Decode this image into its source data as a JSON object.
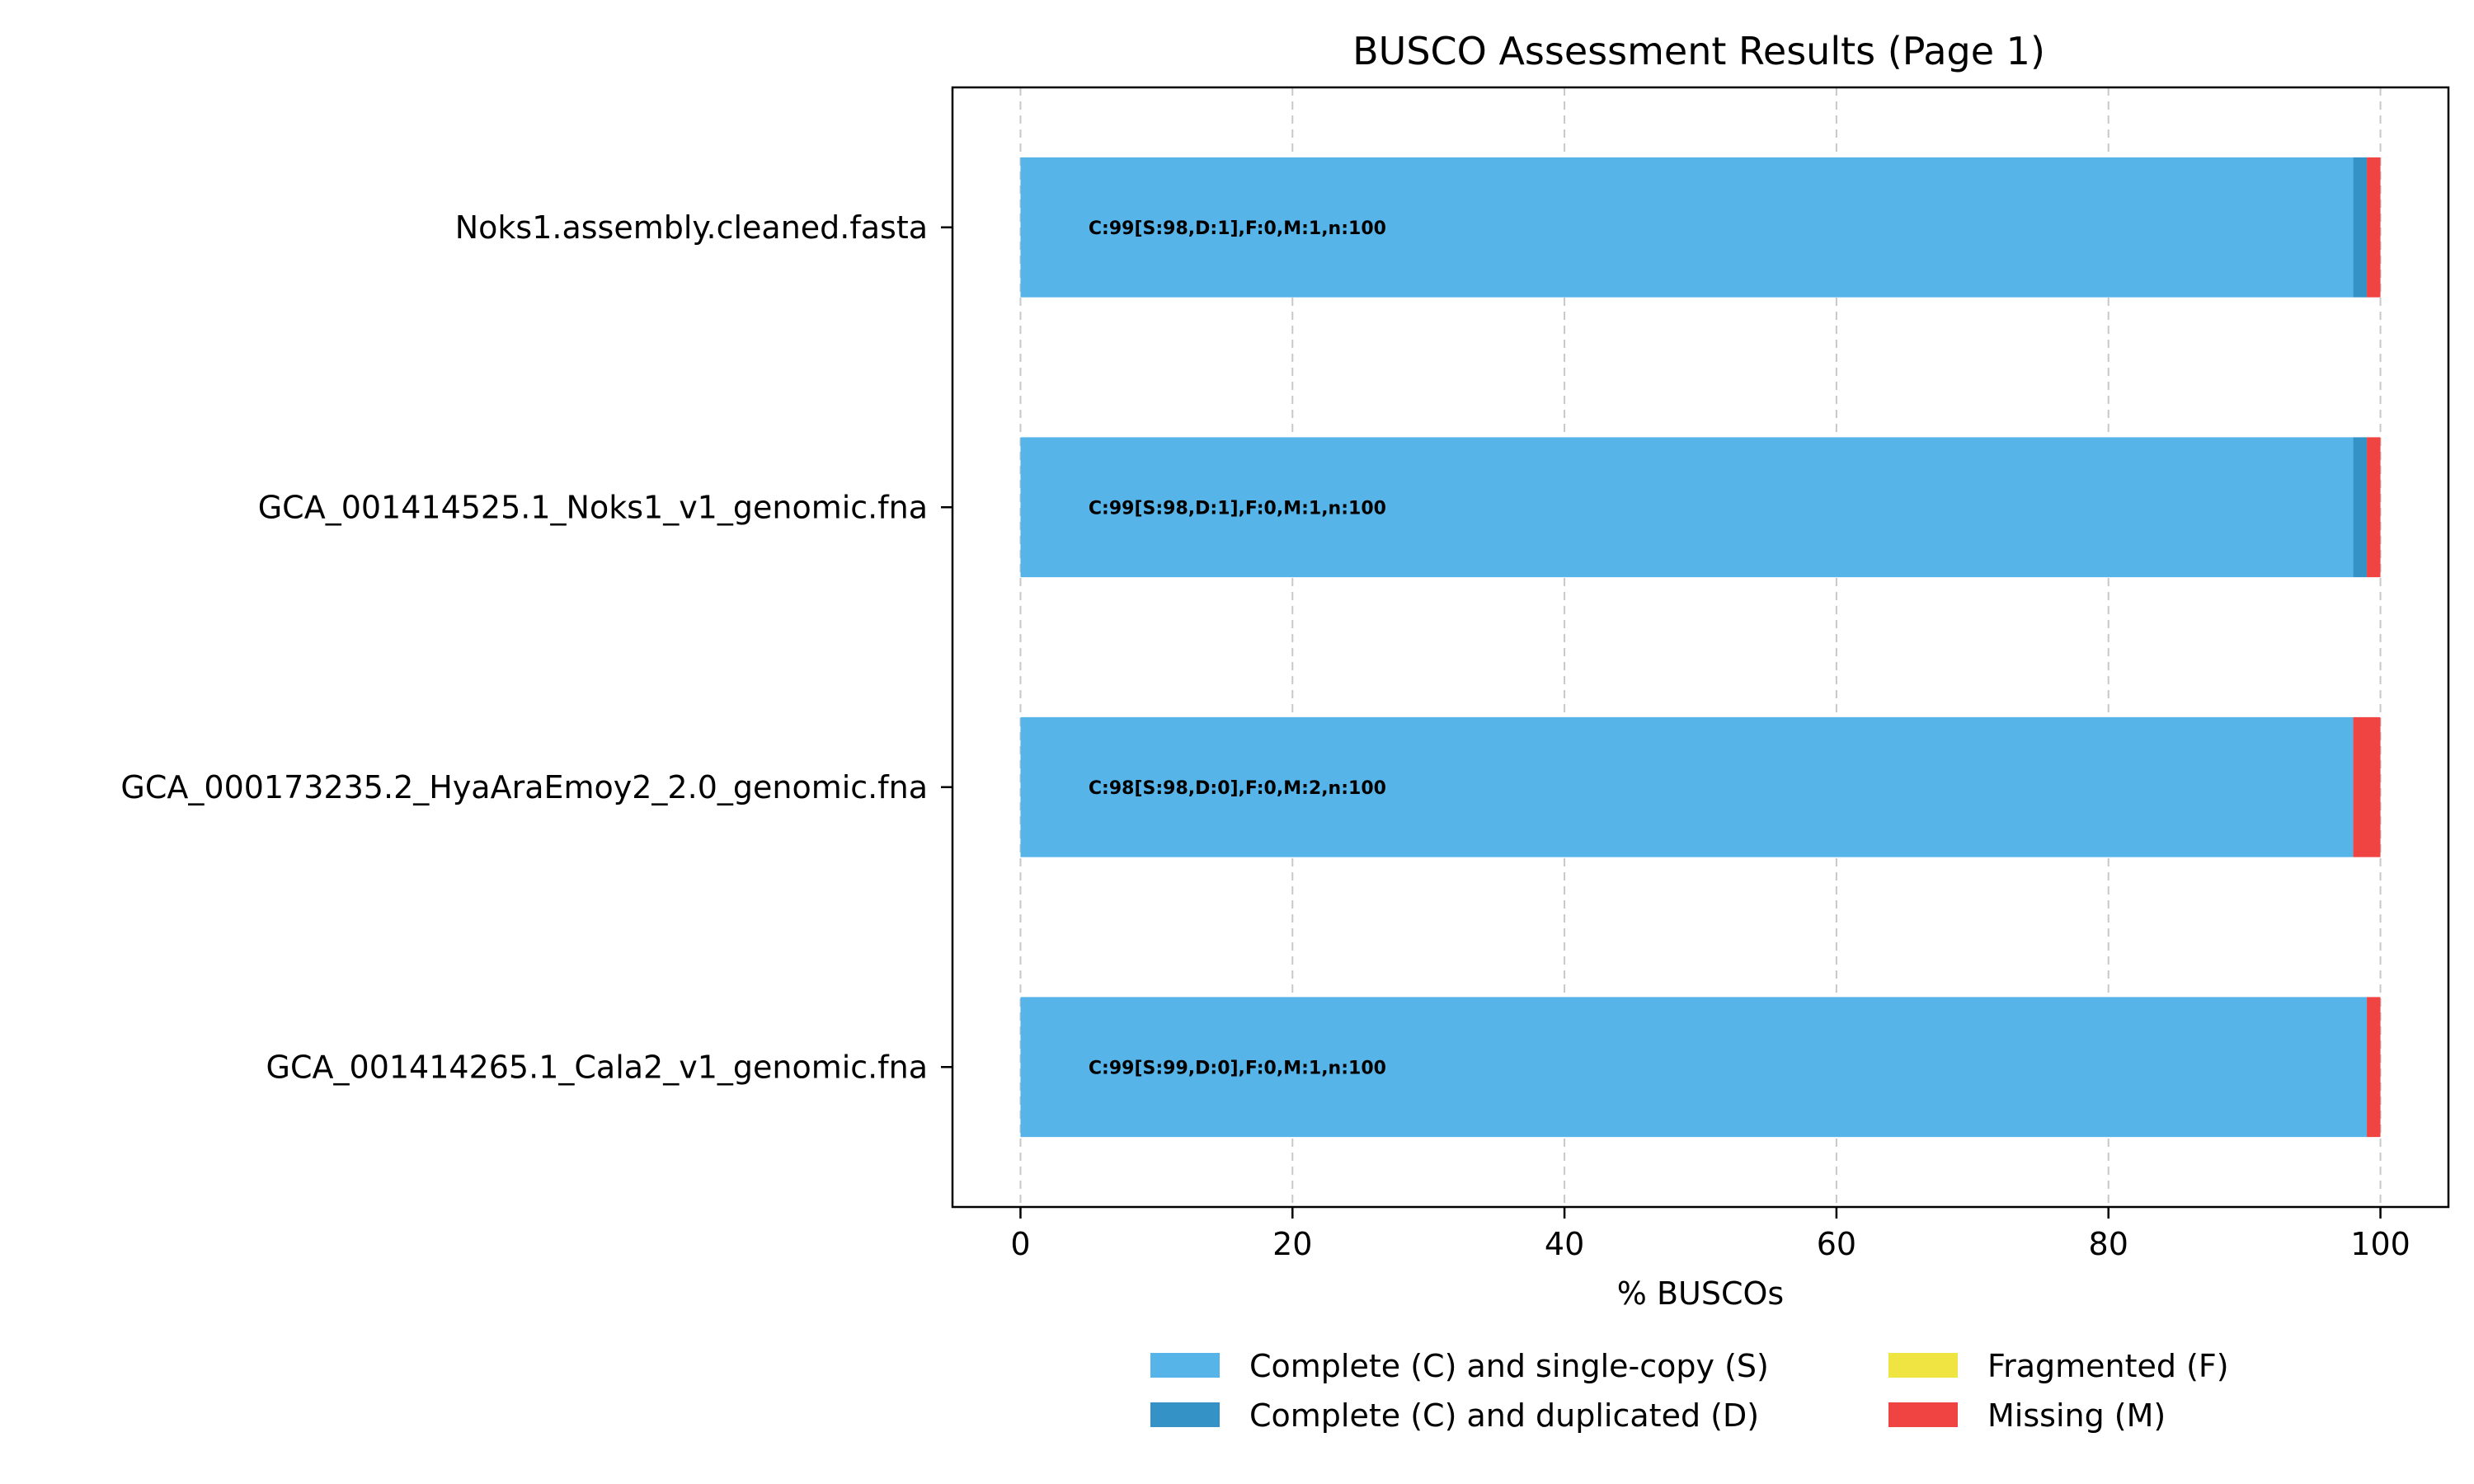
{
  "chart_data": {
    "type": "bar",
    "orientation": "horizontal",
    "stacked": true,
    "title": "BUSCO Assessment Results (Page 1)",
    "xlabel": "% BUSCOs",
    "ylabel": "",
    "xlim": [
      -5,
      105
    ],
    "xticks": [
      0,
      20,
      40,
      60,
      80,
      100
    ],
    "grid": "x dashed",
    "categories": [
      "Noks1.assembly.cleaned.fasta",
      "GCA_001414525.1_Noks1_v1_genomic.fna",
      "GCA_000173235.2_HyaAraEmoy2_2.0_genomic.fna",
      "GCA_001414265.1_Cala2_v1_genomic.fna"
    ],
    "series": [
      {
        "name": "Complete (C) and single-copy (S)",
        "color": "#56B4E9",
        "values": [
          98,
          98,
          98,
          99
        ]
      },
      {
        "name": "Complete (C) and duplicated (D)",
        "color": "#3492C7",
        "values": [
          1,
          1,
          0,
          0
        ]
      },
      {
        "name": "Fragmented (F)",
        "color": "#F0E442",
        "values": [
          0,
          0,
          0,
          0
        ]
      },
      {
        "name": "Missing (M)",
        "color": "#F04442",
        "values": [
          1,
          1,
          2,
          1
        ]
      }
    ],
    "bar_labels": [
      "C:99[S:98,D:1],F:0,M:1,n:100",
      "C:99[S:98,D:1],F:0,M:1,n:100",
      "C:98[S:98,D:0],F:0,M:2,n:100",
      "C:99[S:99,D:0],F:0,M:1,n:100"
    ],
    "legend_position": "bottom-center"
  }
}
